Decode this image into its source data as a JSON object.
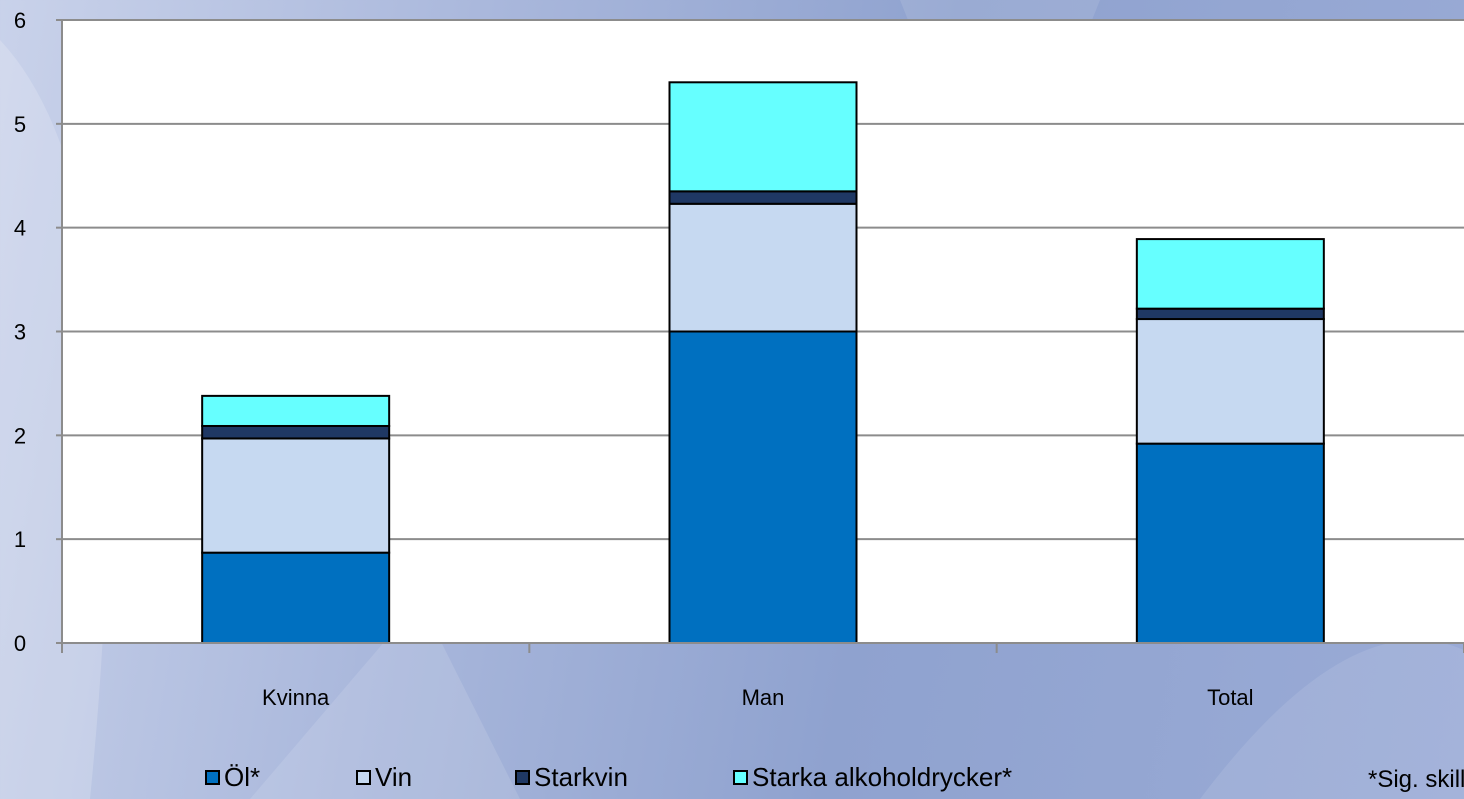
{
  "chart_data": {
    "type": "bar",
    "stacked": true,
    "categories": [
      "Kvinna",
      "Man",
      "Total"
    ],
    "series": [
      {
        "name": "Öl*",
        "color": "#0070c0",
        "values": [
          0.87,
          3.0,
          1.92
        ]
      },
      {
        "name": "Vin",
        "color": "#c6d9f1",
        "values": [
          1.1,
          1.23,
          1.2
        ]
      },
      {
        "name": "Starkvin",
        "color": "#1f3864",
        "values": [
          0.12,
          0.12,
          0.1
        ]
      },
      {
        "name": "Starka alkoholdrycker*",
        "color": "#66ffff",
        "values": [
          0.29,
          1.05,
          0.67
        ]
      }
    ],
    "ylim": [
      0,
      6
    ],
    "yticks": [
      "0",
      "1",
      "2",
      "3",
      "4",
      "5",
      "6"
    ],
    "grid": true,
    "legend_position": "bottom",
    "annotation": "*Sig. skillnad"
  }
}
